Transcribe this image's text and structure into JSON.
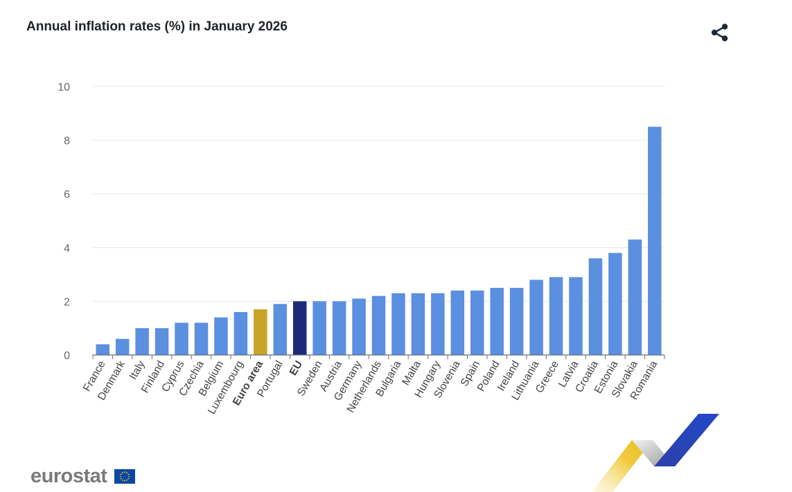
{
  "header": {
    "title": "Annual inflation rates (%) in January 2026",
    "share_icon": "share-icon"
  },
  "colors": {
    "bar": "#5b8fe0",
    "euro_area": "#c9a428",
    "eu": "#1c2a78",
    "grid": "#e3e6ee",
    "tick_text": "#666666",
    "label_text": "#444444"
  },
  "chart_data": {
    "type": "bar",
    "title": "Annual inflation rates (%) in January 2026",
    "xlabel": "",
    "ylabel": "",
    "ylim": [
      0,
      10
    ],
    "yticks": [
      "0",
      "2",
      "4",
      "6",
      "8",
      "10"
    ],
    "grid": true,
    "categories": [
      "France",
      "Denmark",
      "Italy",
      "Finland",
      "Cyprus",
      "Czechia",
      "Belgium",
      "Luxembourg",
      "Euro area",
      "Portugal",
      "EU",
      "Sweden",
      "Austria",
      "Germany",
      "Netherlands",
      "Bulgaria",
      "Malta",
      "Hungary",
      "Slovenia",
      "Spain",
      "Poland",
      "Ireland",
      "Lithuania",
      "Greece",
      "Latvia",
      "Croatia",
      "Estonia",
      "Slovakia",
      "Romania"
    ],
    "values": [
      0.4,
      0.6,
      1.0,
      1.0,
      1.2,
      1.2,
      1.4,
      1.6,
      1.7,
      1.9,
      2.0,
      2.0,
      2.0,
      2.1,
      2.2,
      2.3,
      2.3,
      2.3,
      2.4,
      2.4,
      2.5,
      2.5,
      2.8,
      2.9,
      2.9,
      3.6,
      3.8,
      4.3,
      8.5
    ],
    "highlight": {
      "Euro area": "euro_area",
      "EU": "eu"
    },
    "bold_categories": [
      "Euro area",
      "EU"
    ]
  },
  "branding": {
    "logo_text": "eurostat",
    "flag_icon": "eu-flag-icon"
  }
}
